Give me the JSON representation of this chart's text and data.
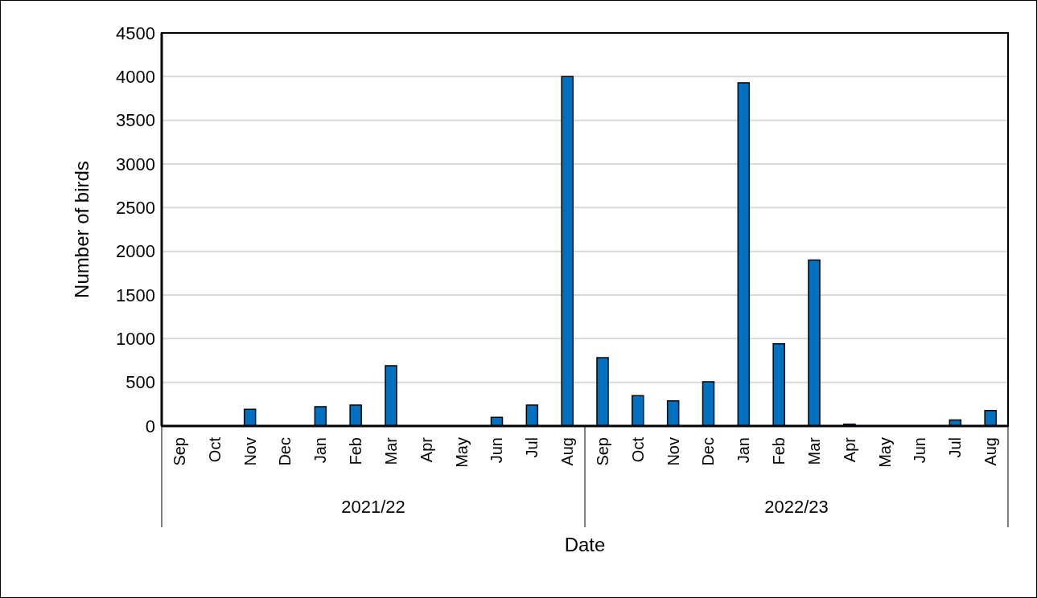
{
  "chart_data": {
    "type": "bar",
    "xlabel": "Date",
    "ylabel": "Number of birds",
    "categories": [
      "Sep",
      "Oct",
      "Nov",
      "Dec",
      "Jan",
      "Feb",
      "Mar",
      "Apr",
      "May",
      "Jun",
      "Jul",
      "Aug",
      "Sep",
      "Oct",
      "Nov",
      "Dec",
      "Jan",
      "Feb",
      "Mar",
      "Apr",
      "May",
      "Jun",
      "Jul",
      "Aug"
    ],
    "values": [
      0,
      0,
      190,
      0,
      222,
      240,
      690,
      0,
      0,
      98,
      240,
      4000,
      783,
      348,
      287,
      505,
      3930,
      940,
      1900,
      20,
      0,
      0,
      68,
      176
    ],
    "color": "#0070c0",
    "ylim": [
      0,
      4500
    ],
    "yticks": [
      0,
      500,
      1000,
      1500,
      2000,
      2500,
      3000,
      3500,
      4000,
      4500
    ],
    "grid": "y",
    "annotations": [
      "2021/22",
      "2022/23"
    ]
  }
}
